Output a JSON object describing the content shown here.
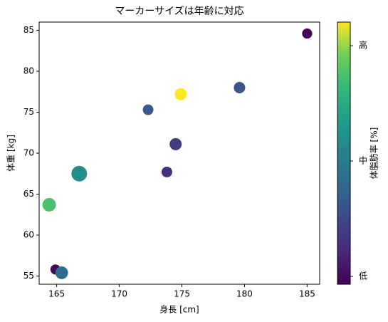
{
  "chart_data": {
    "type": "scatter",
    "title": "マーカーサイズは年齢に対応",
    "x_label": "身長 [cm]",
    "y_label": "体重 [kg]",
    "x": [
      185.0,
      179.6,
      174.9,
      172.3,
      174.5,
      173.8,
      166.8,
      164.4,
      164.9,
      165.4
    ],
    "y": [
      84.6,
      78.0,
      77.2,
      75.3,
      71.1,
      67.7,
      67.5,
      63.7,
      55.8,
      55.4
    ],
    "sizes": [
      25,
      32,
      36,
      28,
      36,
      28,
      60,
      45,
      25,
      40
    ],
    "color_values": [
      0.0,
      0.3,
      1.0,
      0.32,
      0.2,
      0.15,
      0.55,
      0.8,
      0.02,
      0.4
    ],
    "colormap": "viridis",
    "xlim": [
      163.6,
      186.0
    ],
    "xticks": [
      165,
      170,
      175,
      180,
      185
    ],
    "ylim": [
      54.0,
      86.0
    ],
    "yticks": [
      55,
      60,
      65,
      70,
      75,
      80,
      85
    ],
    "colorbar": {
      "label": "体脂肪率 [%]",
      "clim": [
        0,
        1
      ],
      "ticks": [
        {
          "value": 0.03,
          "label": "低"
        },
        {
          "value": 0.47,
          "label": "中"
        },
        {
          "value": 0.91,
          "label": "高"
        }
      ]
    },
    "grid": false
  }
}
